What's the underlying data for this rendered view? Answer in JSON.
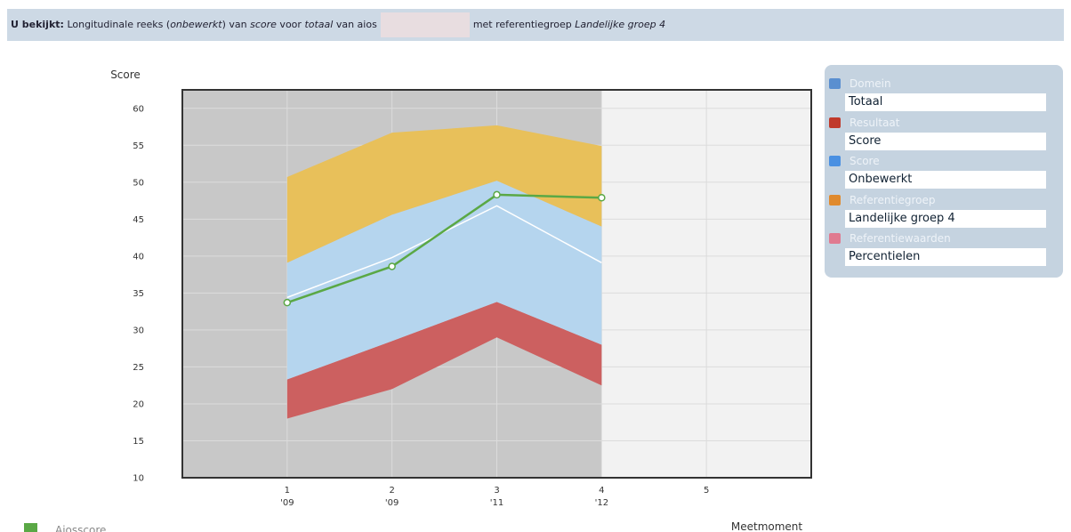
{
  "header": {
    "label": "U bekijkt:",
    "parts": [
      {
        "text": "Longitudinale reeks (",
        "italic": false
      },
      {
        "text": "onbewerkt",
        "italic": true
      },
      {
        "text": ") van ",
        "italic": false
      },
      {
        "text": "score",
        "italic": true
      },
      {
        "text": " voor ",
        "italic": false
      },
      {
        "text": "totaal",
        "italic": true
      },
      {
        "text": " van aios",
        "italic": false
      }
    ],
    "parts_after": [
      {
        "text": "met referentiegroep ",
        "italic": false
      },
      {
        "text": "Landelijke groep 4",
        "italic": true
      }
    ]
  },
  "sidebar": [
    {
      "label": "Domein",
      "value": "Totaal",
      "icon": "#5a8fd0"
    },
    {
      "label": "Resultaat",
      "value": "Score",
      "icon": "#c0392b"
    },
    {
      "label": "Score",
      "value": "Onbewerkt",
      "icon": "#4a90e2"
    },
    {
      "label": "Referentiegroep",
      "value": "Landelijke groep 4",
      "icon": "#e08a2e"
    },
    {
      "label": "Referentiewaarden",
      "value": "Percentielen",
      "icon": "#e07a90"
    }
  ],
  "chart_data": {
    "type": "area-line",
    "ylabel": "Score",
    "xlabel": "Meetmoment",
    "categories": [
      "1",
      "2",
      "3",
      "4",
      "5"
    ],
    "category_years": [
      "'09",
      "'09",
      "'11",
      "'12",
      null
    ],
    "x": [
      1,
      2,
      3,
      4,
      5
    ],
    "xlim": [
      0,
      6
    ],
    "ylim": [
      10,
      62.5
    ],
    "yticks": [
      10,
      15,
      20,
      25,
      30,
      35,
      40,
      45,
      50,
      55,
      60
    ],
    "grid": true,
    "shaded_until": 4,
    "bands": [
      {
        "color": "#cc6060",
        "low": [
          18,
          22,
          29,
          22.5
        ],
        "high": [
          23.3,
          28.5,
          33.8,
          28
        ]
      },
      {
        "color": "#b5d5ee",
        "low": [
          23.3,
          28.5,
          33.8,
          28
        ],
        "high": [
          39.1,
          45.6,
          50.2,
          44
        ]
      },
      {
        "color": "#e8c05a",
        "low": [
          39.1,
          45.6,
          50.2,
          44
        ],
        "high": [
          50.7,
          56.7,
          57.7,
          54.9
        ]
      }
    ],
    "series": [
      {
        "color": "#ffffff",
        "values": [
          34.4,
          39.8,
          46.8,
          39.1,
          null
        ]
      },
      {
        "name": "Aiosscore",
        "color": "#5aa845",
        "values": [
          33.7,
          38.6,
          48.3,
          47.9,
          null
        ],
        "markers": true
      }
    ]
  }
}
